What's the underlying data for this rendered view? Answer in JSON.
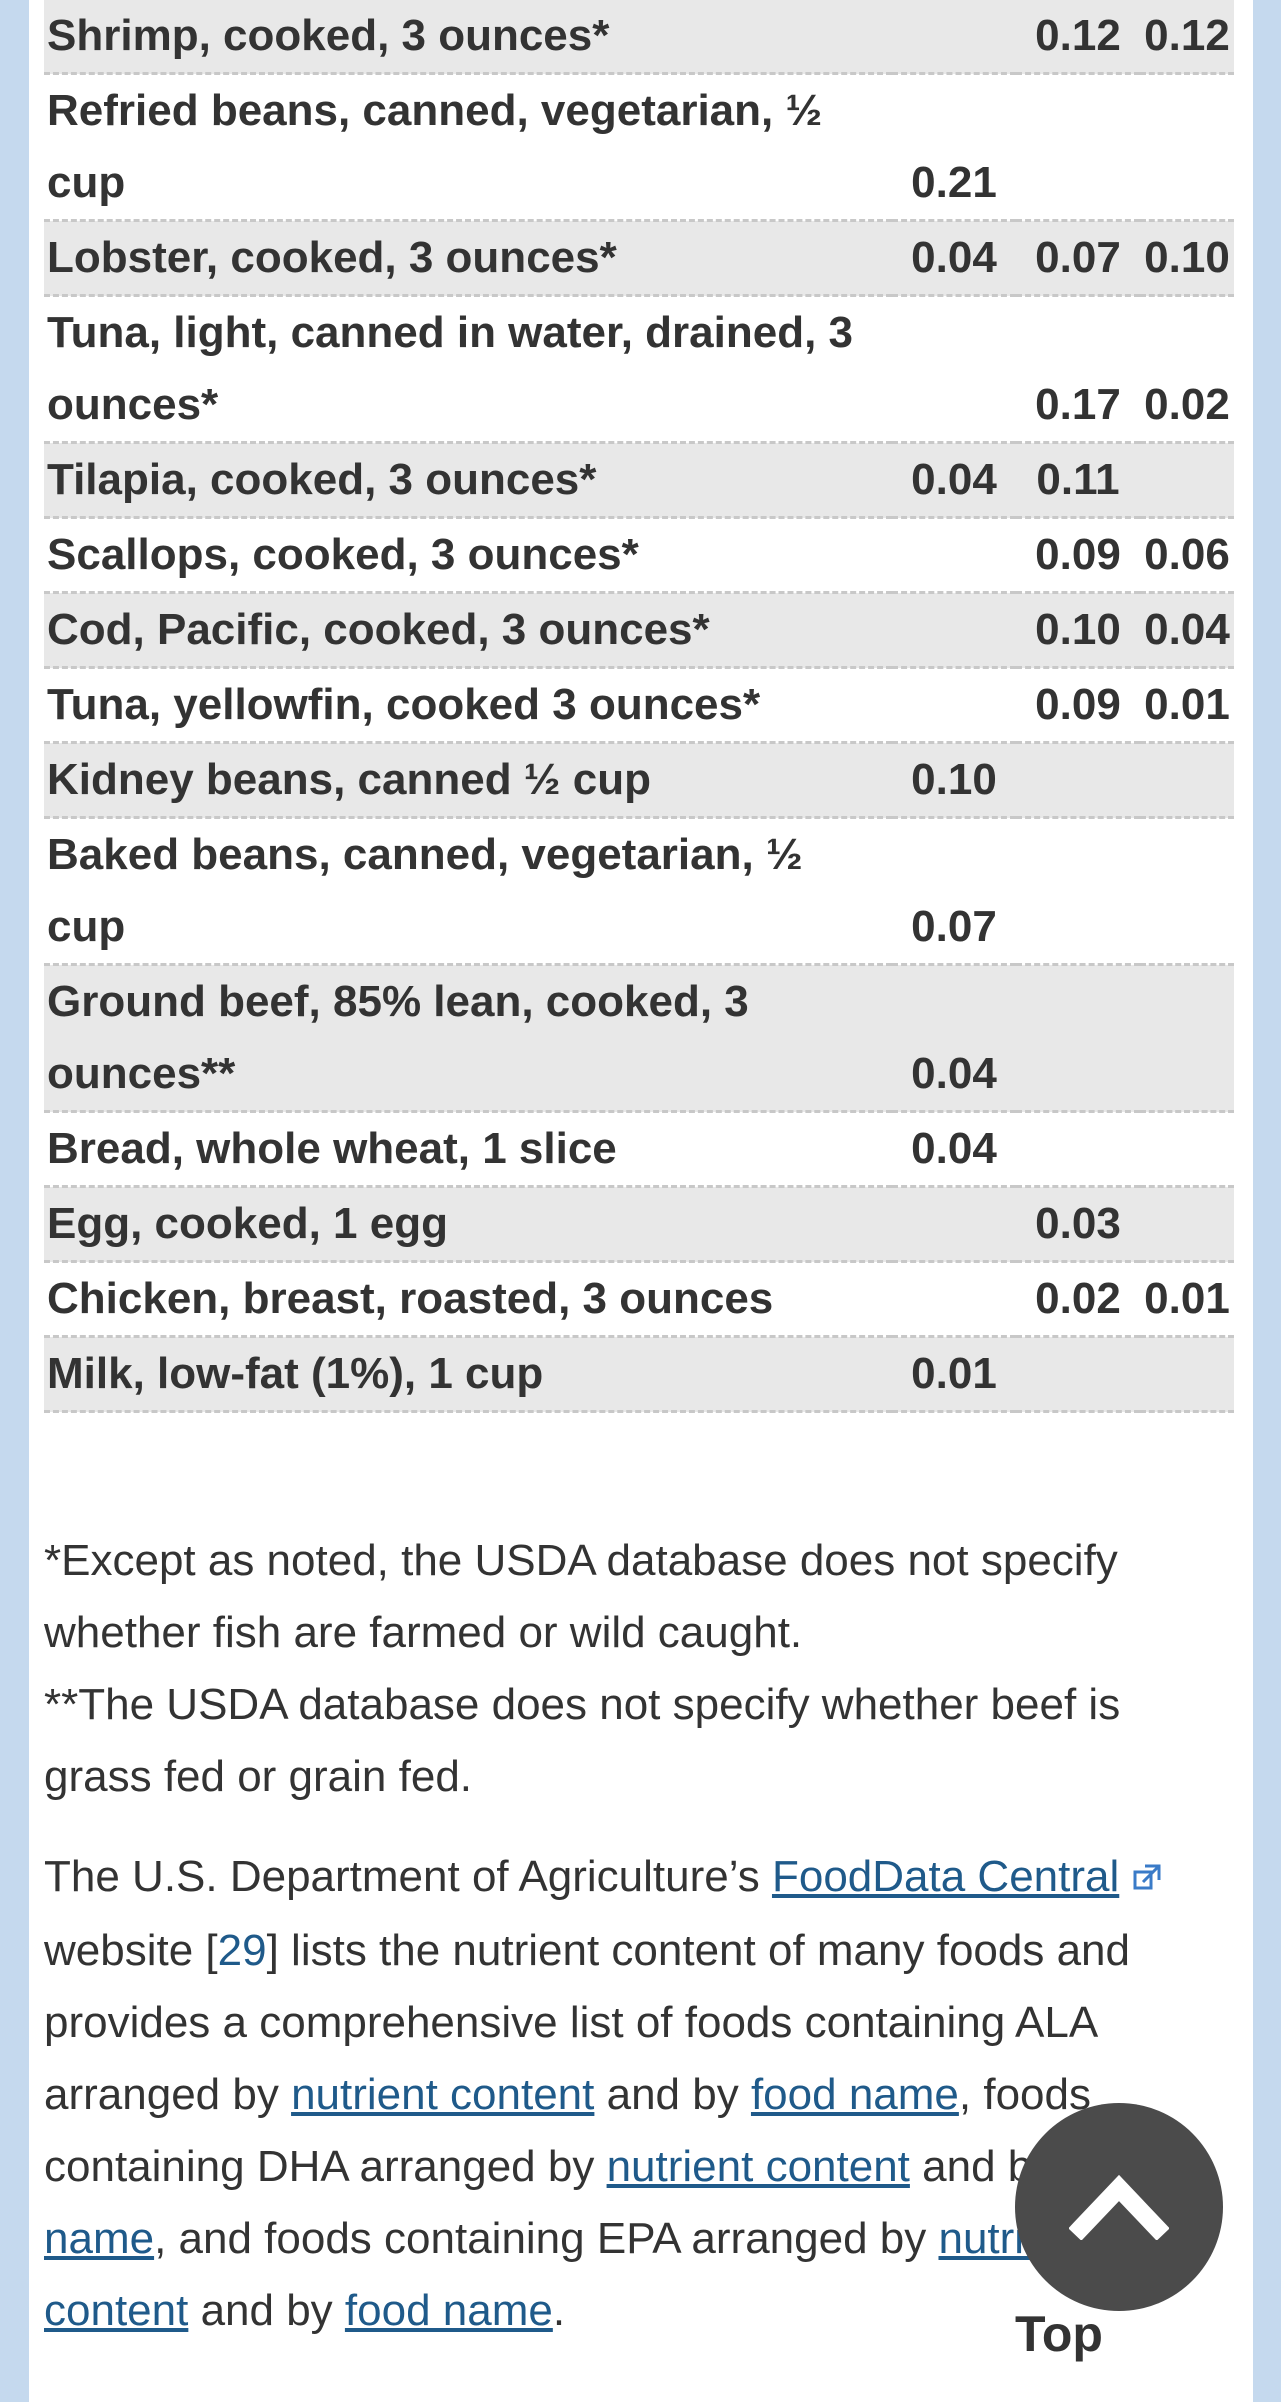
{
  "table": {
    "rows": [
      {
        "food": "Shrimp, cooked, 3 ounces*",
        "ala": "",
        "dha": "0.12",
        "epa": "0.12"
      },
      {
        "food": "Refried beans, canned, vegetarian, ½ cup",
        "ala": "0.21",
        "dha": "",
        "epa": ""
      },
      {
        "food": "Lobster, cooked, 3 ounces*",
        "ala": "0.04",
        "dha": "0.07",
        "epa": "0.10"
      },
      {
        "food": "Tuna, light, canned in water, drained, 3 ounces*",
        "ala": "",
        "dha": "0.17",
        "epa": "0.02"
      },
      {
        "food": "Tilapia, cooked, 3 ounces*",
        "ala": "0.04",
        "dha": "0.11",
        "epa": ""
      },
      {
        "food": "Scallops, cooked, 3 ounces*",
        "ala": "",
        "dha": "0.09",
        "epa": "0.06"
      },
      {
        "food": "Cod, Pacific, cooked, 3 ounces*",
        "ala": "",
        "dha": "0.10",
        "epa": "0.04"
      },
      {
        "food": "Tuna, yellowfin, cooked 3 ounces*",
        "ala": "",
        "dha": "0.09",
        "epa": "0.01"
      },
      {
        "food": "Kidney beans, canned ½ cup",
        "ala": "0.10",
        "dha": "",
        "epa": ""
      },
      {
        "food": "Baked beans, canned, vegetarian, ½ cup",
        "ala": "0.07",
        "dha": "",
        "epa": ""
      },
      {
        "food": "Ground beef, 85% lean, cooked, 3 ounces**",
        "ala": "0.04",
        "dha": "",
        "epa": ""
      },
      {
        "food": "Bread, whole wheat, 1 slice",
        "ala": "0.04",
        "dha": "",
        "epa": ""
      },
      {
        "food": "Egg, cooked, 1 egg",
        "ala": "",
        "dha": "0.03",
        "epa": ""
      },
      {
        "food": "Chicken, breast, roasted, 3 ounces",
        "ala": "",
        "dha": "0.02",
        "epa": "0.01"
      },
      {
        "food": "Milk, low-fat (1%), 1 cup",
        "ala": "0.01",
        "dha": "",
        "epa": ""
      }
    ]
  },
  "footnotes": {
    "note1": "*Except as noted, the USDA database does not specify whether fish are farmed or wild caught.",
    "note2": "**The USDA database does not specify whether beef is grass fed or grain fed."
  },
  "paragraph": {
    "t1": "The U.S. Department of Agriculture’s ",
    "link_fdc": "FoodData Central",
    "t2": " website [",
    "ref": "29",
    "t3": "] lists the nutrient content of many foods and provides a comprehensive list of foods containing ALA arranged by ",
    "link_ala_nutrient": "nutrient content",
    "t4": " and by ",
    "link_ala_name": "food name",
    "t5": ", foods containing DHA arranged by ",
    "link_dha_nutrient": "nutrient content",
    "t6": " and by ",
    "link_dha_name": "food name",
    "t7": ", and foods containing EPA arranged by ",
    "link_epa_nutrient": "nutrient content",
    "t8": " and by ",
    "link_epa_name": "food name",
    "t9": "."
  },
  "top_button": {
    "label": "Top",
    "icon": "chevron-up-icon"
  },
  "colors": {
    "background": "#c5d9ee",
    "row_shade": "#e8e8e8",
    "link": "#1f5a8a",
    "top_button": "#4b4b4b"
  }
}
